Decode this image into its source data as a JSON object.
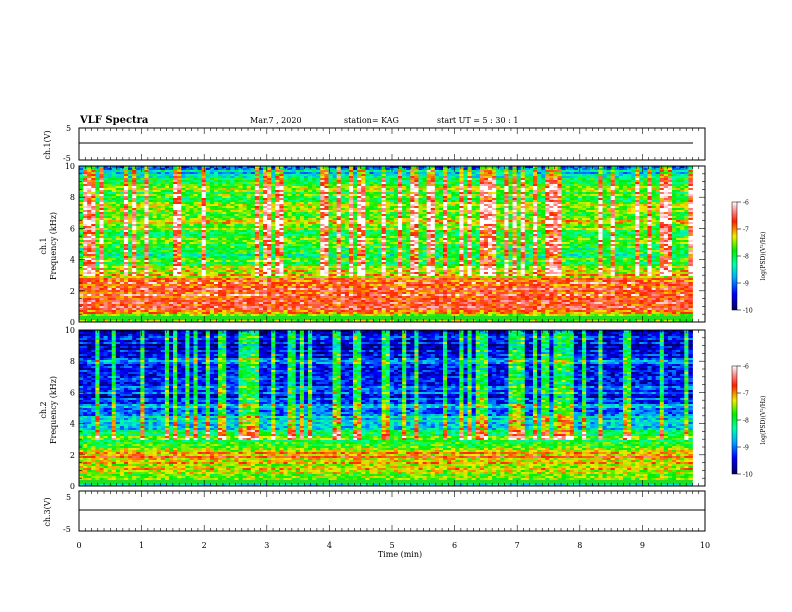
{
  "header": {
    "title": "VLF Spectra",
    "date": "Mar.7  , 2020",
    "station": "station= KAG",
    "start": "start  UT =   5 : 30 : 1"
  },
  "chart_data": [
    {
      "type": "line",
      "panel": "ch1-waveform",
      "ylabel": "ch.1(V)",
      "ylim": [
        -5,
        5
      ],
      "yticks": [
        "5",
        "-5"
      ],
      "xlim": [
        0,
        10
      ],
      "series": [
        {
          "values_description_free": true,
          "values": [
            0,
            0,
            0,
            0,
            0,
            0,
            0,
            0,
            0,
            0
          ]
        }
      ]
    },
    {
      "type": "heatmap",
      "panel": "ch1-spectrogram",
      "ylabel_1": "ch.1",
      "ylabel_2": "Frequency  (kHz)",
      "ylim": [
        0,
        10
      ],
      "yticks": [
        "0",
        "2",
        "4",
        "6",
        "8",
        "10"
      ],
      "xlim": [
        0,
        9.8
      ],
      "colorbar": {
        "label": "log(PSD)(V²/Hz)",
        "range": [
          -10,
          -6
        ],
        "ticks": [
          "-6",
          "-7",
          "-8",
          "-9",
          "-10"
        ]
      }
    },
    {
      "type": "heatmap",
      "panel": "ch2-spectrogram",
      "ylabel_1": "ch.2",
      "ylabel_2": "Frequency  (kHz)",
      "ylim": [
        0,
        10
      ],
      "yticks": [
        "0",
        "2",
        "4",
        "6",
        "8",
        "10"
      ],
      "xlim": [
        0,
        9.8
      ],
      "colorbar": {
        "label": "log(PSD)(V²/Hz)",
        "range": [
          -10,
          -6
        ],
        "ticks": [
          "-6",
          "-7",
          "-8",
          "-9",
          "-10"
        ]
      }
    },
    {
      "type": "line",
      "panel": "ch3-waveform",
      "ylabel": "ch.3(V)",
      "ylim": [
        -5,
        5
      ],
      "yticks": [
        "5",
        "-5"
      ],
      "xlim": [
        0,
        10
      ],
      "xlabel": "Time  (min)",
      "xticks": [
        "0",
        "1",
        "2",
        "3",
        "4",
        "5",
        "6",
        "7",
        "8",
        "9",
        "10"
      ]
    }
  ],
  "colors": {
    "ch1_profile": [
      [
        0.0,
        0.55
      ],
      [
        0.3,
        0.6
      ],
      [
        0.6,
        0.75
      ],
      [
        1.0,
        0.9
      ],
      [
        1.5,
        0.85
      ],
      [
        2.0,
        0.88
      ],
      [
        2.5,
        0.8
      ],
      [
        3.0,
        0.7
      ],
      [
        3.5,
        0.6
      ],
      [
        4.0,
        0.5
      ],
      [
        4.5,
        0.45
      ],
      [
        5.0,
        0.5
      ],
      [
        5.5,
        0.55
      ],
      [
        6.0,
        0.6
      ],
      [
        6.5,
        0.62
      ],
      [
        7.0,
        0.62
      ],
      [
        7.5,
        0.6
      ],
      [
        8.0,
        0.55
      ],
      [
        8.5,
        0.58
      ],
      [
        9.0,
        0.55
      ],
      [
        9.5,
        0.42
      ],
      [
        10.0,
        0.2
      ]
    ],
    "ch2_profile": [
      [
        0.0,
        0.5
      ],
      [
        0.3,
        0.55
      ],
      [
        0.6,
        0.6
      ],
      [
        1.0,
        0.65
      ],
      [
        1.5,
        0.7
      ],
      [
        2.0,
        0.75
      ],
      [
        2.5,
        0.6
      ],
      [
        3.0,
        0.55
      ],
      [
        3.5,
        0.45
      ],
      [
        4.0,
        0.35
      ],
      [
        4.5,
        0.3
      ],
      [
        5.0,
        0.3
      ],
      [
        5.5,
        0.15
      ],
      [
        6.0,
        0.2
      ],
      [
        6.5,
        0.15
      ],
      [
        7.0,
        0.2
      ],
      [
        7.5,
        0.15
      ],
      [
        8.0,
        0.25
      ],
      [
        8.5,
        0.1
      ],
      [
        9.0,
        0.1
      ],
      [
        9.5,
        0.12
      ],
      [
        10.0,
        0.1
      ]
    ]
  }
}
